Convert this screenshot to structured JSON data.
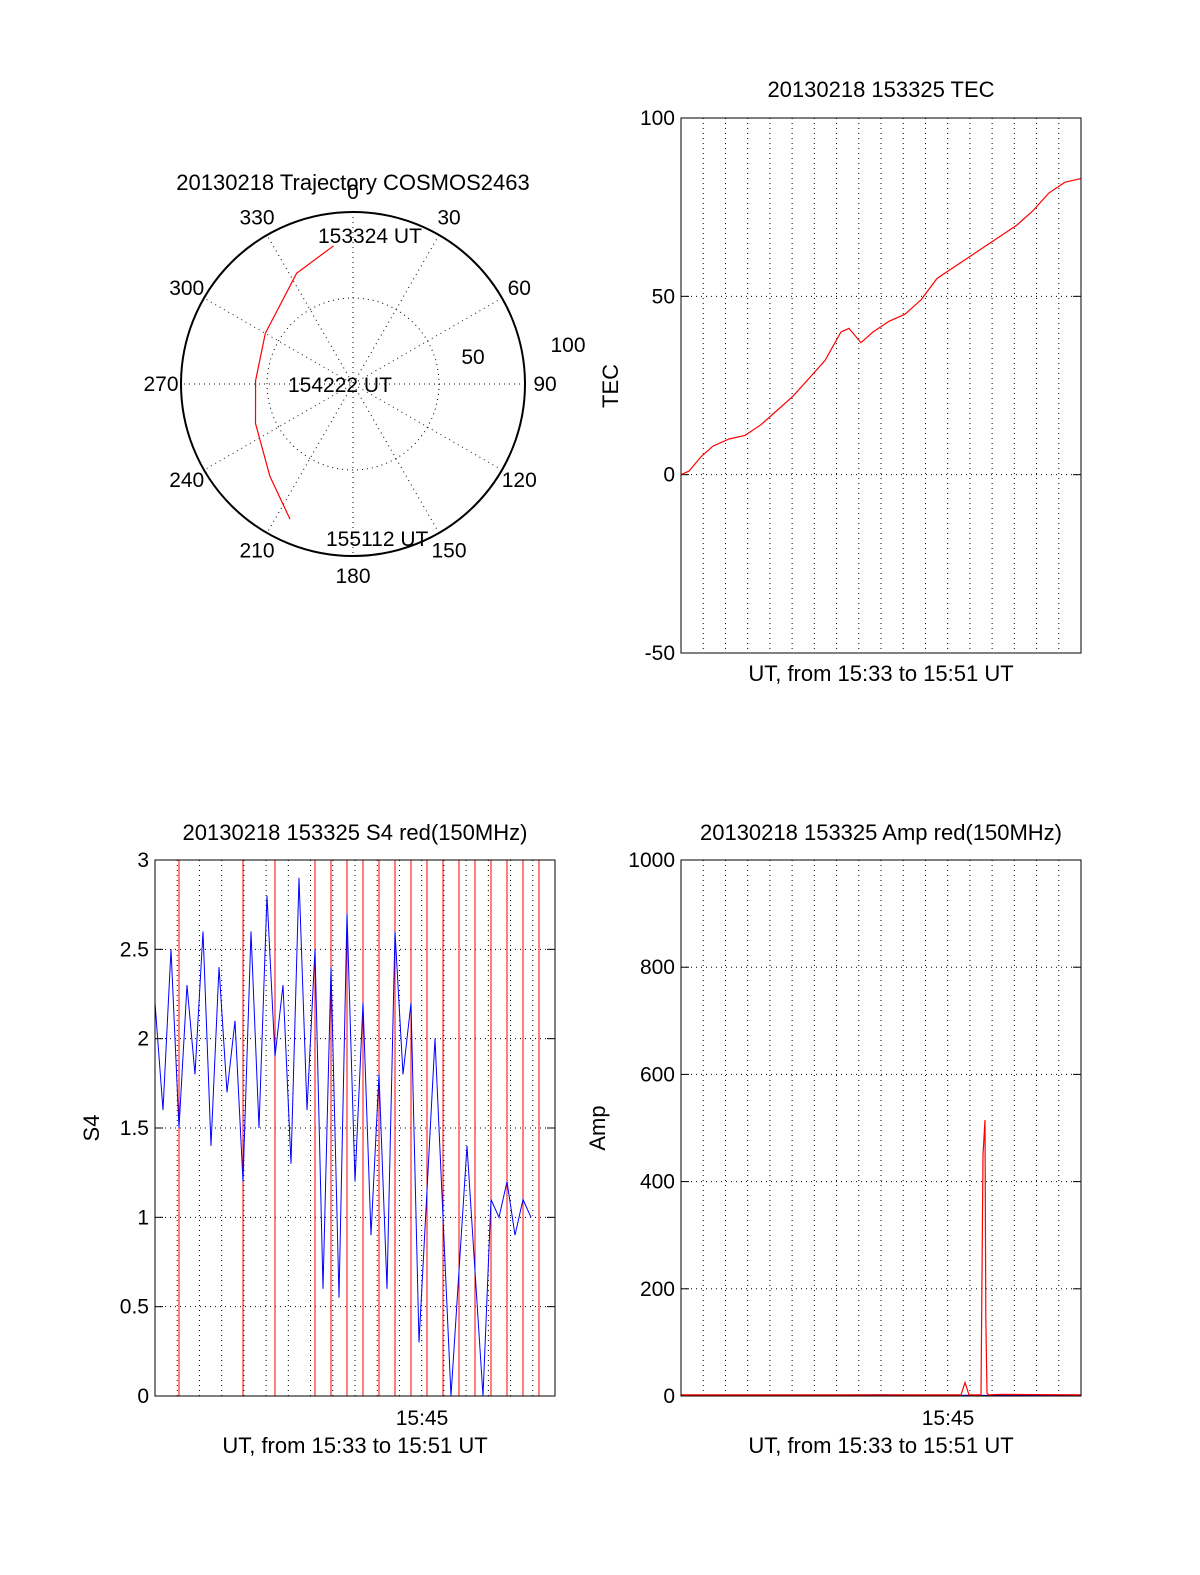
{
  "chart_data": [
    {
      "type": "scatter",
      "panel": "trajectory",
      "title": "20130218 Trajectory COSMOS2463",
      "azimuth_labels": [
        "0",
        "30",
        "60",
        "90",
        "120",
        "150",
        "180",
        "210",
        "240",
        "270",
        "300",
        "330"
      ],
      "radius_labels": [
        "50",
        "100"
      ],
      "track": [
        {
          "az": 352,
          "el": 17,
          "label": "153324 UT"
        },
        {
          "az": 333,
          "el": 25
        },
        {
          "az": 300,
          "el": 37
        },
        {
          "az": 272,
          "el": 39,
          "label": "154222 UT"
        },
        {
          "az": 248,
          "el": 35
        },
        {
          "az": 222,
          "el": 25
        },
        {
          "az": 205,
          "el": 12,
          "label": "155112 UT"
        }
      ],
      "colors": {
        "track": "#ff0000"
      }
    },
    {
      "type": "line",
      "panel": "tec",
      "title": "20130218 153325 TEC",
      "ylabel": "TEC",
      "xlabel": "UT, from 15:33 to 15:51 UT",
      "ylim": [
        -50,
        100
      ],
      "yticks": [
        "-50",
        "0",
        "50",
        "100"
      ],
      "xlim": [
        0,
        1
      ],
      "series": [
        {
          "color": "#ff0000",
          "x": [
            0,
            0.02,
            0.05,
            0.08,
            0.12,
            0.16,
            0.2,
            0.24,
            0.28,
            0.32,
            0.36,
            0.4,
            0.42,
            0.45,
            0.48,
            0.52,
            0.56,
            0.6,
            0.64,
            0.68,
            0.72,
            0.76,
            0.8,
            0.84,
            0.88,
            0.92,
            0.96,
            1.0
          ],
          "y": [
            0,
            1,
            5,
            8,
            10,
            11,
            14,
            18,
            22,
            27,
            32,
            40,
            41,
            37,
            40,
            43,
            45,
            49,
            55,
            58,
            61,
            64,
            67,
            70,
            74,
            79,
            82,
            83
          ]
        }
      ]
    },
    {
      "type": "line",
      "panel": "s4",
      "title": "20130218 153325 S4 red(150MHz)",
      "ylabel": "S4",
      "xlabel": "UT, from 15:33 to 15:51 UT",
      "ylim": [
        0,
        3
      ],
      "yticks": [
        "0",
        "0.5",
        "1",
        "1.5",
        "2",
        "2.5",
        "3"
      ],
      "xtick": "15:45",
      "xlim": [
        0,
        1
      ],
      "series": [
        {
          "color": "#ff0000",
          "x": [
            0.06,
            0.2,
            0.22,
            0.24,
            0.3,
            0.38,
            0.4,
            0.42,
            0.44,
            0.46,
            0.48,
            0.5,
            0.52,
            0.54,
            0.56,
            0.58,
            0.6,
            0.62,
            0.64,
            0.66,
            0.68,
            0.7,
            0.72,
            0.74,
            0.76,
            0.78,
            0.8,
            0.82,
            0.84,
            0.86,
            0.88,
            0.9,
            0.92,
            0.94,
            0.96
          ],
          "y": [
            3,
            0,
            3,
            0,
            3,
            0,
            3,
            0,
            3,
            0,
            3,
            0,
            3,
            0,
            3,
            0,
            3,
            0,
            3,
            0,
            3,
            0,
            3,
            0,
            3,
            0,
            3,
            0,
            3,
            0,
            3,
            0,
            3,
            0,
            3
          ]
        },
        {
          "color": "#0000ff",
          "x": [
            0,
            0.02,
            0.04,
            0.06,
            0.08,
            0.1,
            0.12,
            0.14,
            0.16,
            0.18,
            0.2,
            0.22,
            0.24,
            0.26,
            0.28,
            0.3,
            0.32,
            0.34,
            0.36,
            0.38,
            0.4,
            0.42,
            0.44,
            0.46,
            0.48,
            0.5,
            0.52,
            0.54,
            0.56,
            0.58,
            0.6,
            0.62,
            0.64,
            0.66,
            0.7,
            0.74,
            0.78,
            0.82,
            0.84,
            0.86,
            0.88,
            0.9,
            0.92,
            0.94
          ],
          "y": [
            2.2,
            1.6,
            2.5,
            1.5,
            2.3,
            1.8,
            2.6,
            1.4,
            2.4,
            1.7,
            2.1,
            1.2,
            2.6,
            1.5,
            2.8,
            1.9,
            2.3,
            1.3,
            2.9,
            1.6,
            2.5,
            0.6,
            2.4,
            0.55,
            2.7,
            1.2,
            2.2,
            0.9,
            1.8,
            0.6,
            2.6,
            1.8,
            2.2,
            0.3,
            2.0,
            0.0,
            1.4,
            0.0,
            1.1,
            1.0,
            1.2,
            0.9,
            1.1,
            1.0
          ]
        }
      ]
    },
    {
      "type": "line",
      "panel": "amp",
      "title": "20130218 153325 Amp red(150MHz)",
      "ylabel": "Amp",
      "xlabel": "UT, from 15:33 to 15:51 UT",
      "ylim": [
        0,
        1000
      ],
      "yticks": [
        "0",
        "200",
        "400",
        "600",
        "800",
        "1000"
      ],
      "xtick": "15:45",
      "xlim": [
        0,
        1
      ],
      "series": [
        {
          "color": "#ff0000",
          "x": [
            0,
            0.7,
            0.71,
            0.72,
            0.75,
            0.755,
            0.76,
            0.762,
            0.765,
            0.77,
            0.8,
            1.0
          ],
          "y": [
            2,
            2,
            25,
            2,
            2,
            450,
            515,
            150,
            5,
            2,
            3,
            2
          ]
        },
        {
          "color": "#0000ff",
          "x": [
            0,
            0.25,
            0.5,
            0.75,
            1.0
          ],
          "y": [
            1,
            1,
            2,
            1,
            1
          ]
        }
      ]
    }
  ]
}
